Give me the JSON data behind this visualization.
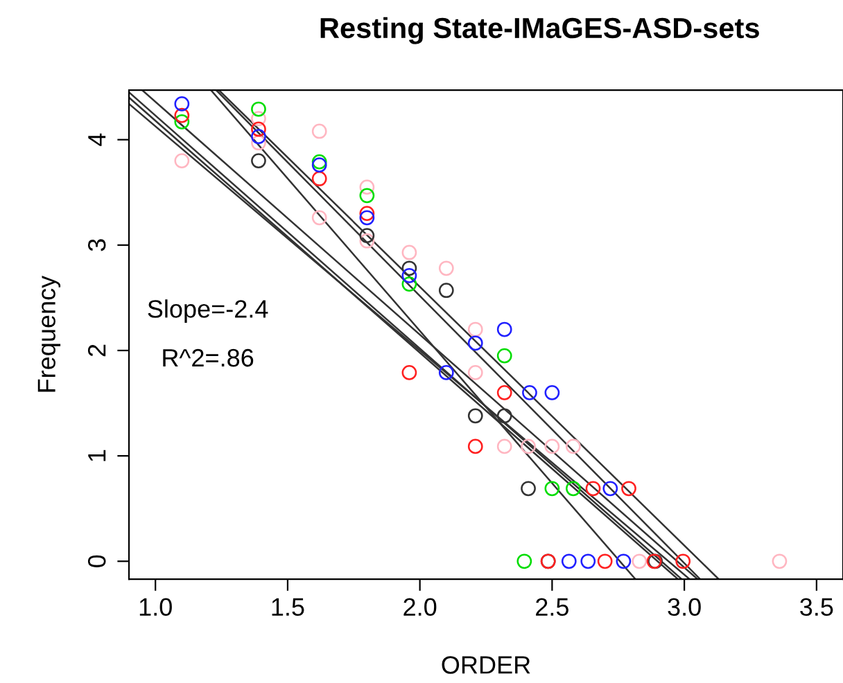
{
  "chart_data": {
    "type": "scatter",
    "title": "Resting State-IMaGES-ASD-sets",
    "xlabel": "ORDER",
    "ylabel": "Frequency",
    "xlim": [
      0.9,
      3.6
    ],
    "ylim": [
      -0.17,
      4.47
    ],
    "xticks": [
      {
        "value": 1.0,
        "label": "1.0"
      },
      {
        "value": 1.5,
        "label": "1.5"
      },
      {
        "value": 2.0,
        "label": "2.0"
      },
      {
        "value": 2.5,
        "label": "2.5"
      },
      {
        "value": 3.0,
        "label": "3.0"
      },
      {
        "value": 3.5,
        "label": "3.5"
      }
    ],
    "yticks": [
      0,
      1,
      2,
      3,
      4
    ],
    "grid": false,
    "legend": false,
    "marker": "circle",
    "annotations": [
      "Slope=-2.4",
      "R^2=.86"
    ],
    "series": [
      {
        "color": "#ffb6c1",
        "x": [
          1.1,
          1.39,
          1.39,
          1.62,
          1.62,
          1.8,
          1.8,
          1.96,
          2.1,
          2.21,
          2.21,
          2.32,
          2.41,
          2.5,
          2.58,
          2.83,
          3.36
        ],
        "values": [
          3.8,
          4.2,
          3.97,
          4.08,
          3.26,
          3.55,
          3.04,
          2.93,
          2.78,
          2.2,
          1.79,
          1.09,
          1.09,
          1.09,
          1.09,
          0,
          0
        ]
      },
      {
        "color": "#333333",
        "x": [
          1.39,
          1.8,
          1.96,
          2.1,
          2.21,
          2.32,
          2.41,
          2.485,
          2.89
        ],
        "values": [
          3.8,
          3.09,
          2.78,
          2.57,
          1.38,
          1.38,
          0.69,
          0,
          0
        ]
      },
      {
        "color": "#00dd00",
        "x": [
          1.1,
          1.39,
          1.62,
          1.8,
          1.96,
          2.32,
          2.5,
          2.58,
          2.395
        ],
        "values": [
          4.17,
          4.29,
          3.79,
          3.47,
          2.63,
          1.95,
          0.69,
          0.69,
          0
        ]
      },
      {
        "color": "#ff2020",
        "x": [
          1.1,
          1.39,
          1.62,
          1.8,
          1.96,
          2.21,
          2.32,
          2.655,
          2.79,
          2.485,
          2.7,
          2.886,
          2.995
        ],
        "values": [
          4.23,
          4.1,
          3.63,
          3.3,
          1.79,
          1.09,
          1.6,
          0.69,
          0.69,
          0,
          0,
          0,
          0
        ]
      },
      {
        "color": "#2020ff",
        "x": [
          1.1,
          1.39,
          1.62,
          1.8,
          1.96,
          2.1,
          2.21,
          2.32,
          2.415,
          2.5,
          2.72,
          2.564,
          2.636,
          2.77
        ],
        "values": [
          4.34,
          4.03,
          3.76,
          3.26,
          2.71,
          1.79,
          2.07,
          2.2,
          1.6,
          1.6,
          0.69,
          0,
          0,
          0
        ]
      },
      {
        "type": "line",
        "marker": "none",
        "color": "#333333",
        "x": [
          0.9,
          2.99
        ],
        "values": [
          4.45,
          -0.17
        ]
      },
      {
        "type": "line",
        "marker": "none",
        "color": "#333333",
        "x": [
          0.9,
          2.976
        ],
        "values": [
          4.4,
          -0.17
        ]
      },
      {
        "type": "line",
        "marker": "none",
        "color": "#333333",
        "x": [
          0.9,
          3.02
        ],
        "values": [
          4.34,
          -0.17
        ]
      },
      {
        "type": "line",
        "marker": "none",
        "color": "#333333",
        "x": [
          0.95,
          3.05
        ],
        "values": [
          4.47,
          -0.17
        ]
      },
      {
        "type": "line",
        "marker": "none",
        "color": "#333333",
        "x": [
          1.21,
          2.815
        ],
        "values": [
          4.47,
          -0.17
        ]
      },
      {
        "type": "line",
        "marker": "none",
        "color": "#333333",
        "x": [
          1.23,
          3.06
        ],
        "values": [
          4.47,
          -0.17
        ]
      },
      {
        "type": "line",
        "marker": "none",
        "color": "#333333",
        "x": [
          1.24,
          3.13
        ],
        "values": [
          4.47,
          -0.17
        ]
      }
    ]
  }
}
